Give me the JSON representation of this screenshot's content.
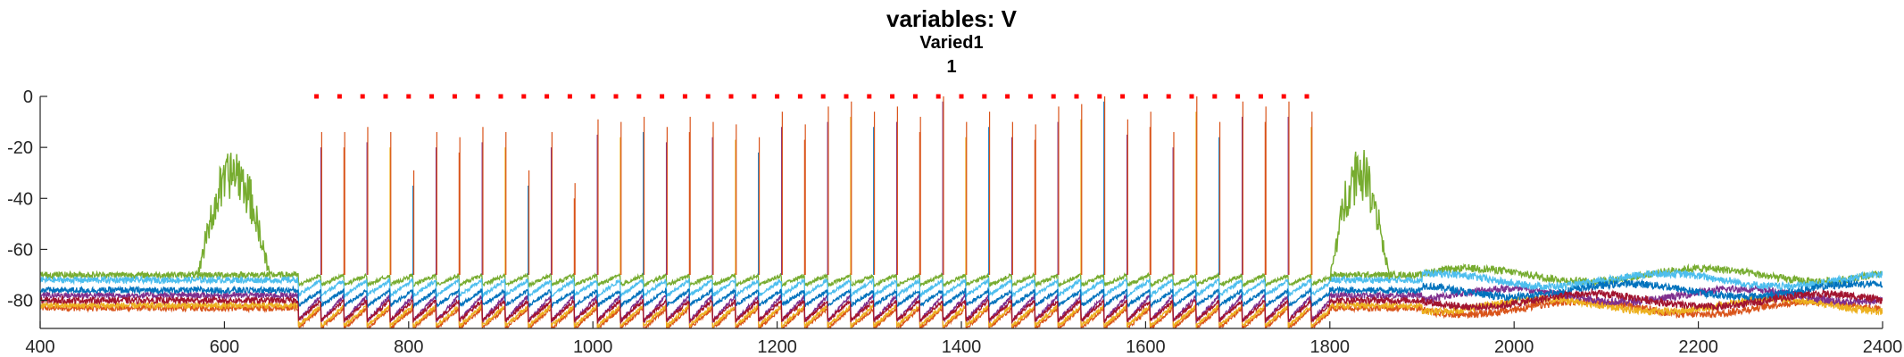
{
  "chart_data": {
    "type": "line",
    "title": "variables: V",
    "subtitle_lines": [
      "Varied1",
      "1"
    ],
    "xlabel": "",
    "ylabel": "",
    "xlim": [
      400,
      2400
    ],
    "ylim": [
      -91,
      0
    ],
    "xticks": [
      400,
      600,
      800,
      1000,
      1200,
      1400,
      1600,
      1800,
      2000,
      2200,
      2400
    ],
    "yticks": [
      0,
      -20,
      -40,
      -60,
      -80
    ],
    "xtick_labels": [
      "400",
      "600",
      "800",
      "1000",
      "1200",
      "1400",
      "1600",
      "1800",
      "2000",
      "2200",
      "2400"
    ],
    "ytick_labels": [
      "0",
      "-20",
      "-40",
      "-60",
      "-80"
    ],
    "grid": false,
    "legend": false,
    "stimulus_markers": {
      "color": "#ff0000",
      "y": 0,
      "x_start": 700,
      "x_end": 1780,
      "step": 25
    },
    "spike_train": {
      "first_x": 705,
      "period": 25,
      "count": 44,
      "peak_values": [
        -20,
        -20,
        -18,
        -20,
        -35,
        -20,
        -22,
        -18,
        -20,
        -35,
        -20,
        -40,
        -15,
        -16,
        -14,
        -18,
        -14,
        -16,
        -17,
        -22,
        -12,
        -17,
        -10,
        -8,
        -12,
        -10,
        -14,
        -2,
        -16,
        -12,
        -16,
        -17,
        -10,
        -9,
        -2,
        -15,
        -12,
        -20,
        -6,
        -16,
        -8,
        -10,
        -8,
        -12
      ]
    },
    "series": [
      {
        "color": "#d95319",
        "baseline": -83,
        "trough": -91
      },
      {
        "color": "#edb120",
        "baseline": -82,
        "trough": -90
      },
      {
        "color": "#7e2f8e",
        "baseline": -78,
        "trough": -88
      },
      {
        "color": "#77ac30",
        "baseline": -70,
        "trough": -74
      },
      {
        "color": "#4dbeee",
        "baseline": -72,
        "trough": -78
      },
      {
        "color": "#0072bd",
        "baseline": -76,
        "trough": -82
      },
      {
        "color": "#a2142f",
        "baseline": -80,
        "trough": -88
      }
    ],
    "green_bursts": [
      {
        "x_start": 570,
        "x_end": 650,
        "peak_y": -20
      },
      {
        "x_start": 1800,
        "x_end": 1865,
        "peak_y": -18
      }
    ]
  }
}
